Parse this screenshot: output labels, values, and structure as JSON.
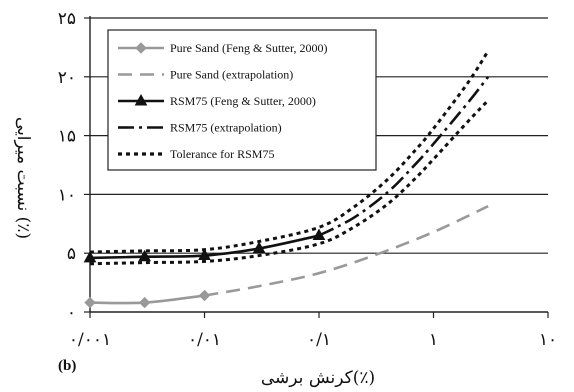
{
  "chart_data": {
    "type": "line",
    "title": "",
    "panel_label": "(b)",
    "xlabel": "کرنش برشی(٪)",
    "ylabel": "نسبت میرایی (٪)",
    "x_scale": "log",
    "xlim": [
      0.001,
      10
    ],
    "ylim": [
      0,
      25
    ],
    "grid": "horizontal",
    "legend_position": "top-left",
    "x_ticks": [
      {
        "value": 0.001,
        "label": "۰/۰۰۱"
      },
      {
        "value": 0.01,
        "label": "۰/۰۱"
      },
      {
        "value": 0.1,
        "label": "۰/۱"
      },
      {
        "value": 1,
        "label": "۱"
      },
      {
        "value": 10,
        "label": "۱۰"
      }
    ],
    "y_ticks": [
      {
        "value": 0,
        "label": "۰"
      },
      {
        "value": 5,
        "label": "۵"
      },
      {
        "value": 10,
        "label": "۱۰"
      },
      {
        "value": 15,
        "label": "۱۵"
      },
      {
        "value": 20,
        "label": "۲۰"
      },
      {
        "value": 25,
        "label": "۲۵"
      }
    ],
    "series": [
      {
        "name": "Pure Sand (Feng & Sutter, 2000)",
        "color": "#999999",
        "line": "solid",
        "marker": "diamond",
        "x": [
          0.001,
          0.003,
          0.01
        ],
        "y": [
          0.8,
          0.8,
          1.4
        ]
      },
      {
        "name": "Pure Sand (extrapolation)",
        "color": "#999999",
        "line": "longdash",
        "marker": "none",
        "x": [
          0.01,
          0.03,
          0.1,
          0.3,
          1,
          3
        ],
        "y": [
          1.4,
          2.2,
          3.3,
          4.8,
          6.8,
          9.0
        ]
      },
      {
        "name": "RSM75 (Feng & Sutter, 2000)",
        "color": "#111111",
        "line": "solid",
        "marker": "triangle",
        "x": [
          0.001,
          0.003,
          0.01,
          0.03,
          0.1
        ],
        "y": [
          4.6,
          4.7,
          4.8,
          5.4,
          6.5
        ]
      },
      {
        "name": "RSM75 (extrapolation)",
        "color": "#111111",
        "line": "dashdot",
        "marker": "none",
        "x": [
          0.1,
          0.2,
          0.4,
          0.7,
          1,
          2,
          3
        ],
        "y": [
          6.5,
          8.0,
          10.2,
          12.6,
          14.3,
          17.8,
          20.0
        ]
      },
      {
        "name": "Tolerance for RSM75",
        "color": "#111111",
        "line": "dotted",
        "marker": "none",
        "x": [
          0.001,
          0.003,
          0.01,
          0.03,
          0.1,
          0.2,
          0.4,
          0.7,
          1,
          2,
          3
        ],
        "y": [
          5.1,
          5.2,
          5.3,
          6.0,
          7.2,
          8.9,
          11.3,
          13.8,
          15.6,
          19.5,
          22.2
        ]
      },
      {
        "name": "",
        "color": "#111111",
        "line": "dotted",
        "marker": "none",
        "x": [
          0.001,
          0.003,
          0.01,
          0.03,
          0.1,
          0.2,
          0.4,
          0.7,
          1,
          2,
          3
        ],
        "y": [
          4.1,
          4.2,
          4.3,
          4.8,
          5.8,
          7.2,
          9.2,
          11.4,
          13.0,
          16.2,
          18.0
        ]
      }
    ],
    "legend": [
      {
        "label": "Pure Sand (Feng & Sutter, 2000)",
        "color": "#999999",
        "line": "solid",
        "marker": "diamond"
      },
      {
        "label": "Pure Sand (extrapolation)",
        "color": "#999999",
        "line": "longdash",
        "marker": "none"
      },
      {
        "label": "RSM75 (Feng & Sutter, 2000)",
        "color": "#111111",
        "line": "solid",
        "marker": "triangle"
      },
      {
        "label": "RSM75 (extrapolation)",
        "color": "#111111",
        "line": "dashdot",
        "marker": "none"
      },
      {
        "label": "Tolerance for RSM75",
        "color": "#111111",
        "line": "dotted",
        "marker": "none"
      }
    ]
  }
}
